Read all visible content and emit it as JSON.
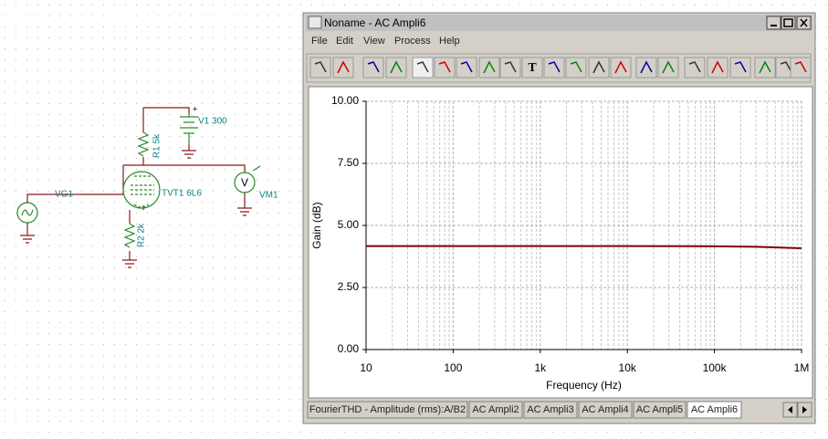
{
  "schematic": {
    "labels": [
      "V1 300",
      "R1 5k",
      "TVT1 6L6",
      "VG1",
      "VM1",
      "R2 2k"
    ],
    "meter_symbol": "V"
  },
  "window": {
    "title": "Noname - AC Ampli6",
    "menu": [
      "File",
      "Edit",
      "View",
      "Process",
      "Help"
    ],
    "text_tool": "T"
  },
  "chart_data": {
    "type": "line",
    "xlabel": "Frequency (Hz)",
    "ylabel": "Gain (dB)",
    "log_x": true,
    "grid": true,
    "xlim": [
      10,
      1000000
    ],
    "xticks": [
      10,
      100,
      {
        "value": 1000,
        "label": "1k"
      },
      {
        "value": 10000,
        "label": "10k"
      },
      {
        "value": 100000,
        "label": "100k"
      },
      {
        "value": 1000000,
        "label": "1M"
      }
    ],
    "ylim": [
      0,
      10
    ],
    "yticks": [
      {
        "value": 0,
        "label": "0.00"
      },
      {
        "value": 2.5,
        "label": "2.50"
      },
      {
        "value": 5,
        "label": "5.00"
      },
      {
        "value": 7.5,
        "label": "7.50"
      },
      {
        "value": 10,
        "label": "10.00"
      }
    ],
    "series": [
      {
        "name": "Gain",
        "color": "#800000",
        "x": [
          10,
          100,
          1000,
          10000,
          100000,
          300000,
          1000000
        ],
        "values": [
          4.17,
          4.17,
          4.17,
          4.17,
          4.16,
          4.14,
          4.08
        ]
      }
    ]
  },
  "tabs": [
    "FourierTHD - Amplitude (rms):A/B2",
    "AC Ampli2",
    "AC Ampli3",
    "AC Ampli4",
    "AC Ampli5",
    "AC Ampli6"
  ]
}
